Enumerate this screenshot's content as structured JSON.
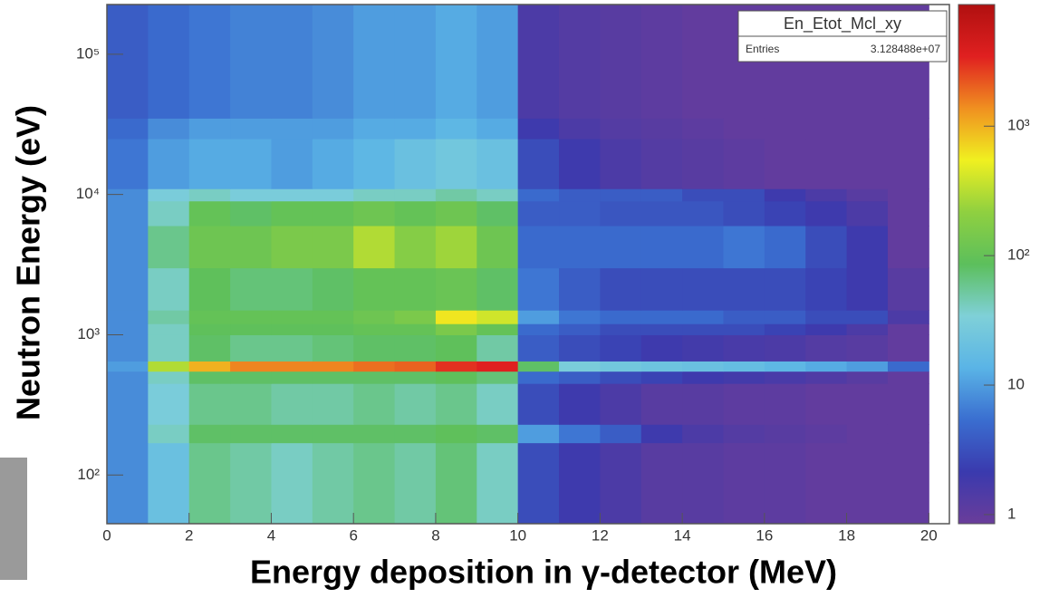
{
  "chart_data": {
    "type": "heatmap",
    "title": "En_Etot_Mcl_xy",
    "stats_label": "Entries",
    "stats_value": "3.128488e+07",
    "x_label": "Energy deposition in γ-detector (MeV)",
    "y_label": "Neutron Energy (eV)",
    "xlim": [
      0,
      20.5
    ],
    "xticks": [
      0,
      2,
      4,
      6,
      8,
      10,
      12,
      14,
      16,
      18,
      20
    ],
    "ylim": [
      45,
      226000
    ],
    "y_log": true,
    "yticks": [
      {
        "value": 100,
        "label": "10²"
      },
      {
        "value": 1000,
        "label": "10³"
      },
      {
        "value": 10000,
        "label": "10⁴"
      },
      {
        "value": 100000,
        "label": "10⁵"
      }
    ],
    "zlim": [
      0.85,
      8700
    ],
    "z_log": true,
    "zticks": [
      1,
      10,
      {
        "value": 100,
        "label": "10²"
      },
      {
        "value": 1000,
        "label": "10³"
      }
    ],
    "colorscale": [
      "#6a3d9a",
      "#3a3aae",
      "#3a6ed0",
      "#5ab4e6",
      "#7fd0d8",
      "#5cbf5c",
      "#8fd040",
      "#f0f020",
      "#f09020",
      "#e02020",
      "#b01010"
    ],
    "xbins": [
      0,
      1,
      2,
      3,
      4,
      5,
      6,
      7,
      8,
      9,
      10,
      11,
      12,
      13,
      14,
      15,
      16,
      17,
      18,
      19,
      20
    ],
    "ybins": [
      45,
      170,
      230,
      450,
      550,
      650,
      1000,
      1200,
      1500,
      3000,
      6000,
      9000,
      11000,
      25000,
      35000,
      226000
    ],
    "z": [
      [
        8,
        20,
        60,
        50,
        40,
        50,
        60,
        50,
        70,
        40,
        3,
        2,
        1.5,
        1.2,
        1.2,
        1.1,
        1.1,
        1,
        1,
        1
      ],
      [
        8,
        40,
        80,
        80,
        80,
        80,
        80,
        80,
        90,
        80,
        10,
        6,
        4,
        2,
        1.5,
        1.3,
        1.2,
        1.1,
        1,
        1
      ],
      [
        8,
        30,
        60,
        60,
        50,
        50,
        60,
        50,
        60,
        40,
        3,
        2,
        1.5,
        1.2,
        1.2,
        1.1,
        1.1,
        1,
        1,
        1
      ],
      [
        8,
        40,
        80,
        80,
        80,
        80,
        80,
        80,
        90,
        70,
        5,
        4,
        3,
        2.5,
        2,
        1.8,
        1.6,
        1.4,
        1.2,
        1
      ],
      [
        10,
        300,
        1000,
        1500,
        1500,
        1500,
        1800,
        2000,
        3000,
        3500,
        80,
        30,
        25,
        22,
        20,
        18,
        15,
        12,
        10,
        5
      ],
      [
        8,
        40,
        80,
        60,
        60,
        70,
        80,
        80,
        90,
        50,
        4,
        3,
        2.5,
        2,
        1.8,
        1.6,
        1.5,
        1.3,
        1.2,
        1
      ],
      [
        8,
        40,
        90,
        90,
        90,
        90,
        100,
        100,
        150,
        100,
        5,
        4,
        3,
        3,
        3,
        3,
        2.5,
        2,
        1.5,
        1
      ],
      [
        8,
        50,
        100,
        100,
        100,
        100,
        120,
        150,
        600,
        400,
        10,
        6,
        5,
        5,
        5,
        4,
        4,
        3,
        3,
        1.5
      ],
      [
        8,
        40,
        90,
        70,
        70,
        80,
        100,
        100,
        110,
        80,
        6,
        4,
        3,
        3,
        3,
        3,
        3,
        2.5,
        2,
        1.2
      ],
      [
        8,
        60,
        120,
        120,
        150,
        150,
        300,
        180,
        250,
        120,
        5,
        5,
        5,
        5,
        5,
        6,
        5,
        3,
        2,
        1
      ],
      [
        8,
        40,
        100,
        80,
        100,
        100,
        120,
        100,
        120,
        80,
        4,
        4,
        3.5,
        3.5,
        3.5,
        3,
        2.5,
        2,
        1.5,
        1
      ],
      [
        8,
        30,
        40,
        30,
        30,
        30,
        40,
        40,
        50,
        40,
        5,
        4,
        4,
        4,
        3,
        3,
        2,
        1.5,
        1.2,
        1
      ],
      [
        6,
        10,
        12,
        12,
        10,
        12,
        15,
        20,
        25,
        20,
        3,
        2,
        1.5,
        1.3,
        1.2,
        1.1,
        1,
        1,
        1,
        1
      ],
      [
        5,
        8,
        10,
        10,
        10,
        10,
        12,
        12,
        15,
        12,
        2,
        1.5,
        1.3,
        1.2,
        1.1,
        1,
        1,
        1,
        1,
        1
      ],
      [
        4,
        5,
        6,
        7,
        7,
        8,
        10,
        10,
        12,
        10,
        1.5,
        1.3,
        1.2,
        1.1,
        1,
        1,
        1,
        1,
        1,
        1
      ]
    ]
  }
}
